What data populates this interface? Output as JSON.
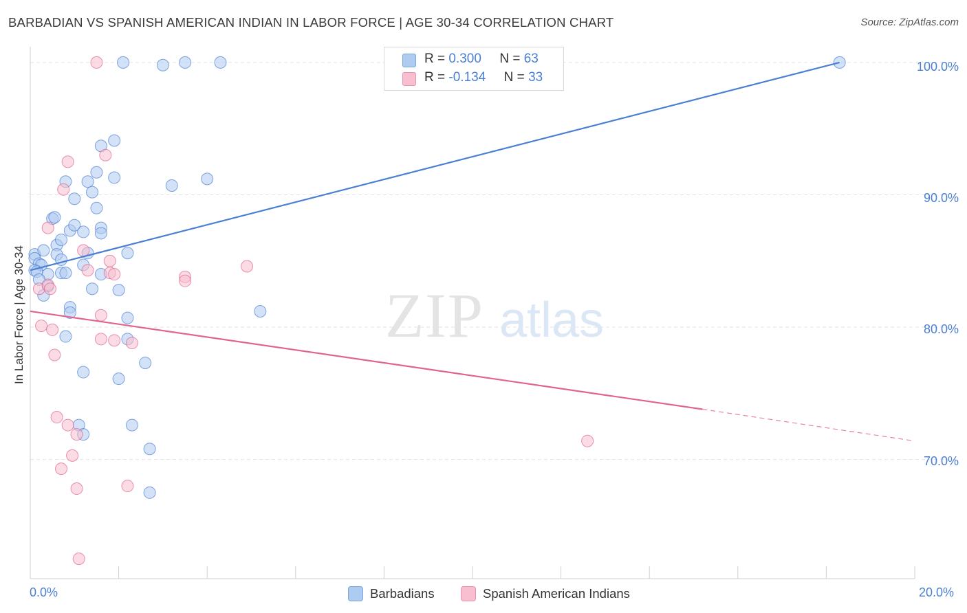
{
  "header": {
    "title": "BARBADIAN VS SPANISH AMERICAN INDIAN IN LABOR FORCE | AGE 30-34 CORRELATION CHART",
    "source": "Source: ZipAtlas.com"
  },
  "watermark": {
    "zip": "ZIP",
    "atlas": "atlas"
  },
  "legend_top": {
    "rows": [
      {
        "r_label": "R =",
        "r_value": "0.300",
        "n_label": "N =",
        "n_value": "63",
        "color": "#aecbf0"
      },
      {
        "r_label": "R =",
        "r_value": "-0.134",
        "n_label": "N =",
        "n_value": "33",
        "color": "#f7bfd0"
      }
    ]
  },
  "legend_bottom": {
    "items": [
      {
        "label": "Barbadians",
        "color": "#aecbf0"
      },
      {
        "label": "Spanish American Indians",
        "color": "#f7bfd0"
      }
    ]
  },
  "axis_text": {
    "ylabel": "In Labor Force | Age 30-34",
    "x_min_label": "0.0%",
    "x_max_label": "20.0%",
    "y_tick_labels": [
      "100.0%",
      "90.0%",
      "80.0%",
      "70.0%"
    ]
  },
  "chart_data": {
    "type": "scatter",
    "title": "BARBADIAN VS SPANISH AMERICAN INDIAN IN LABOR FORCE | AGE 30-34 CORRELATION CHART",
    "xlabel": "",
    "ylabel": "In Labor Force | Age 30-34",
    "xlim": [
      0,
      20
    ],
    "ylim": [
      61.0,
      101.5
    ],
    "x_ticks": [
      0,
      20
    ],
    "y_ticks": [
      70,
      80,
      90,
      100
    ],
    "grid": true,
    "legend_position": "top-center",
    "series": [
      {
        "name": "Barbadians",
        "color": "#4a7fd4",
        "fill": "#aecbf0",
        "r": 0.3,
        "n": 63,
        "trend": {
          "x": [
            0,
            18.3
          ],
          "y": [
            84.3,
            100.0
          ]
        },
        "points": [
          [
            2.1,
            100.0
          ],
          [
            3.0,
            99.8
          ],
          [
            3.5,
            100.0
          ],
          [
            4.3,
            100.0
          ],
          [
            18.3,
            100.0
          ],
          [
            1.6,
            93.7
          ],
          [
            1.9,
            94.1
          ],
          [
            0.8,
            91.0
          ],
          [
            1.3,
            91.0
          ],
          [
            1.5,
            91.7
          ],
          [
            1.9,
            91.3
          ],
          [
            3.2,
            90.7
          ],
          [
            4.0,
            91.2
          ],
          [
            1.0,
            89.7
          ],
          [
            1.4,
            90.2
          ],
          [
            1.5,
            89.0
          ],
          [
            0.5,
            88.2
          ],
          [
            0.55,
            88.3
          ],
          [
            0.9,
            87.3
          ],
          [
            1.0,
            87.7
          ],
          [
            1.2,
            87.2
          ],
          [
            1.6,
            87.5
          ],
          [
            1.6,
            87.1
          ],
          [
            0.6,
            86.2
          ],
          [
            0.7,
            86.6
          ],
          [
            0.1,
            85.5
          ],
          [
            0.3,
            85.8
          ],
          [
            0.6,
            85.5
          ],
          [
            0.7,
            85.1
          ],
          [
            1.3,
            85.6
          ],
          [
            2.2,
            85.6
          ],
          [
            0.1,
            85.2
          ],
          [
            0.2,
            84.8
          ],
          [
            0.25,
            84.7
          ],
          [
            0.1,
            84.3
          ],
          [
            0.15,
            84.2
          ],
          [
            0.4,
            84.0
          ],
          [
            0.7,
            84.1
          ],
          [
            0.8,
            84.1
          ],
          [
            1.2,
            84.7
          ],
          [
            1.6,
            84.0
          ],
          [
            0.2,
            83.6
          ],
          [
            0.4,
            83.1
          ],
          [
            0.3,
            82.4
          ],
          [
            1.4,
            82.9
          ],
          [
            2.0,
            82.8
          ],
          [
            0.9,
            81.5
          ],
          [
            0.9,
            81.1
          ],
          [
            2.2,
            80.7
          ],
          [
            5.2,
            81.2
          ],
          [
            0.8,
            79.3
          ],
          [
            2.2,
            79.1
          ],
          [
            1.2,
            76.6
          ],
          [
            2.6,
            77.3
          ],
          [
            2.0,
            76.1
          ],
          [
            1.1,
            72.6
          ],
          [
            1.2,
            71.9
          ],
          [
            2.3,
            72.6
          ],
          [
            2.7,
            70.8
          ],
          [
            2.7,
            67.5
          ]
        ]
      },
      {
        "name": "Spanish American Indians",
        "color": "#e0648f",
        "fill": "#f7bfd0",
        "r": -0.134,
        "n": 33,
        "trend": {
          "x": [
            0,
            15.2
          ],
          "y": [
            81.2,
            73.8
          ]
        },
        "trend_dashed": {
          "x": [
            15.2,
            20
          ],
          "y": [
            73.8,
            71.4
          ]
        },
        "points": [
          [
            1.5,
            100.0
          ],
          [
            1.7,
            93.0
          ],
          [
            0.85,
            92.5
          ],
          [
            0.75,
            90.4
          ],
          [
            0.4,
            87.5
          ],
          [
            1.2,
            85.8
          ],
          [
            1.8,
            85.0
          ],
          [
            1.3,
            84.3
          ],
          [
            1.8,
            84.1
          ],
          [
            1.9,
            84.0
          ],
          [
            3.5,
            83.8
          ],
          [
            3.5,
            83.5
          ],
          [
            4.9,
            84.6
          ],
          [
            0.2,
            82.9
          ],
          [
            0.4,
            83.2
          ],
          [
            0.45,
            82.9
          ],
          [
            1.6,
            80.9
          ],
          [
            0.25,
            80.1
          ],
          [
            0.5,
            79.8
          ],
          [
            1.6,
            79.1
          ],
          [
            1.9,
            79.0
          ],
          [
            2.3,
            78.8
          ],
          [
            0.55,
            77.9
          ],
          [
            0.6,
            73.2
          ],
          [
            0.85,
            72.6
          ],
          [
            1.05,
            71.9
          ],
          [
            0.95,
            70.3
          ],
          [
            0.7,
            69.3
          ],
          [
            1.05,
            67.8
          ],
          [
            2.2,
            68.0
          ],
          [
            12.6,
            71.4
          ],
          [
            1.1,
            62.5
          ]
        ]
      }
    ]
  }
}
